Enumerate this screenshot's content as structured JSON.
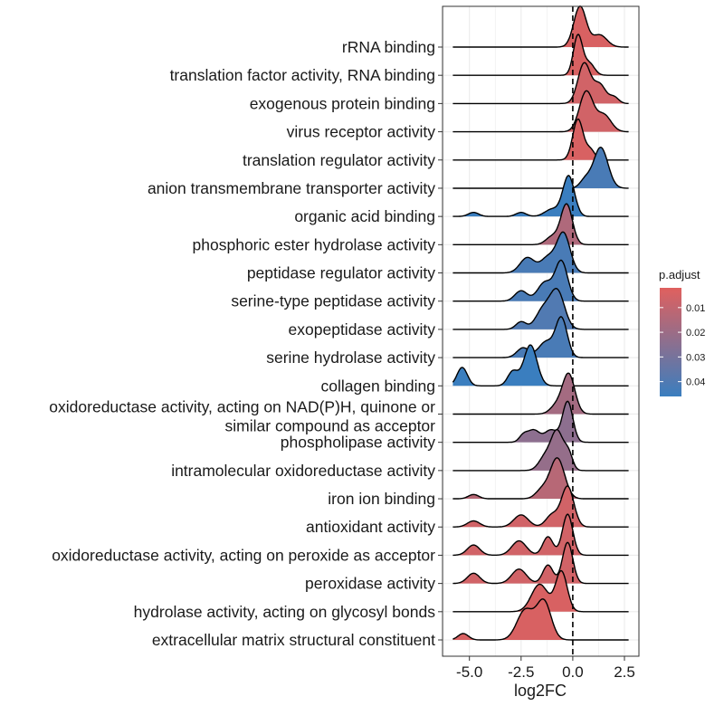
{
  "chart_data": {
    "type": "ridgeline",
    "xlabel": "log2FC",
    "xlim": [
      -6.3,
      3.2
    ],
    "x_ticks": [
      -5.0,
      -2.5,
      0.0,
      2.5
    ],
    "x_tick_labels": [
      "-5.0",
      "-2.5",
      "0.0",
      "2.5"
    ],
    "reference_line_x": 0,
    "grid": true,
    "legend": {
      "title": "p.adjust",
      "position": "right",
      "range": [
        0.002,
        0.046
      ],
      "ticks": [
        0.01,
        0.02,
        0.03,
        0.04
      ],
      "tick_labels": [
        "0.01",
        "0.02",
        "0.03",
        "0.04"
      ],
      "color_low": "#e0605e",
      "color_high": "#3a7ebf"
    },
    "categories": [
      {
        "label": "rRNA binding",
        "p_adjust": 0.004,
        "peaks": [
          [
            0.35,
            0.3,
            1.0
          ],
          [
            1.3,
            0.35,
            0.3
          ]
        ]
      },
      {
        "label": "translation factor activity, RNA binding",
        "p_adjust": 0.004,
        "peaks": [
          [
            0.25,
            0.22,
            1.0
          ],
          [
            0.8,
            0.25,
            0.3
          ]
        ]
      },
      {
        "label": "exogenous protein binding",
        "p_adjust": 0.006,
        "peaks": [
          [
            0.55,
            0.3,
            0.95
          ],
          [
            1.3,
            0.3,
            0.45
          ],
          [
            2.0,
            0.22,
            0.15
          ]
        ]
      },
      {
        "label": "virus receptor activity",
        "p_adjust": 0.006,
        "peaks": [
          [
            0.65,
            0.33,
            0.95
          ],
          [
            1.5,
            0.35,
            0.4
          ]
        ]
      },
      {
        "label": "translation regulator activity",
        "p_adjust": 0.004,
        "peaks": [
          [
            0.25,
            0.25,
            1.0
          ],
          [
            0.85,
            0.22,
            0.25
          ]
        ]
      },
      {
        "label": "anion transmembrane transporter activity",
        "p_adjust": 0.042,
        "peaks": [
          [
            1.35,
            0.35,
            1.0
          ],
          [
            0.6,
            0.25,
            0.2
          ]
        ]
      },
      {
        "label": "organic acid binding",
        "p_adjust": 0.046,
        "peaks": [
          [
            -0.2,
            0.28,
            1.0
          ],
          [
            -1.0,
            0.35,
            0.18
          ],
          [
            -2.5,
            0.25,
            0.1
          ],
          [
            -4.8,
            0.25,
            0.1
          ]
        ]
      },
      {
        "label": "phosphoric ester hydrolase activity",
        "p_adjust": 0.015,
        "peaks": [
          [
            -0.3,
            0.28,
            1.0
          ],
          [
            -1.0,
            0.3,
            0.2
          ]
        ]
      },
      {
        "label": "peptidase regulator activity",
        "p_adjust": 0.042,
        "peaks": [
          [
            -0.45,
            0.32,
            0.9
          ],
          [
            -1.2,
            0.35,
            0.35
          ],
          [
            -2.2,
            0.35,
            0.35
          ]
        ]
      },
      {
        "label": "serine-type peptidase activity",
        "p_adjust": 0.042,
        "peaks": [
          [
            -0.55,
            0.3,
            0.95
          ],
          [
            -1.35,
            0.35,
            0.45
          ],
          [
            -2.5,
            0.3,
            0.25
          ]
        ]
      },
      {
        "label": "exopeptidase activity",
        "p_adjust": 0.04,
        "peaks": [
          [
            -0.75,
            0.35,
            1.0
          ],
          [
            -1.45,
            0.35,
            0.5
          ],
          [
            -2.5,
            0.25,
            0.2
          ]
        ]
      },
      {
        "label": "serine hydrolase activity",
        "p_adjust": 0.042,
        "peaks": [
          [
            -0.55,
            0.28,
            1.0
          ],
          [
            -1.3,
            0.35,
            0.4
          ],
          [
            -2.4,
            0.3,
            0.25
          ]
        ]
      },
      {
        "label": "collagen binding",
        "p_adjust": 0.046,
        "peaks": [
          [
            -2.05,
            0.32,
            1.0
          ],
          [
            -2.9,
            0.25,
            0.35
          ],
          [
            -5.35,
            0.25,
            0.45
          ]
        ]
      },
      {
        "label": "oxidoreductase activity, acting on NAD(P)H, quinone or similar compound as acceptor",
        "p_adjust": 0.018,
        "peaks": [
          [
            -0.2,
            0.3,
            1.0
          ],
          [
            -0.8,
            0.3,
            0.2
          ]
        ]
      },
      {
        "label": "phospholipase activity",
        "p_adjust": 0.024,
        "peaks": [
          [
            -0.25,
            0.25,
            1.0
          ],
          [
            -1.05,
            0.3,
            0.3
          ],
          [
            -1.9,
            0.3,
            0.3
          ],
          [
            -2.4,
            0.2,
            0.15
          ]
        ]
      },
      {
        "label": "intramolecular oxidoreductase activity",
        "p_adjust": 0.022,
        "peaks": [
          [
            -0.75,
            0.3,
            0.9
          ],
          [
            -1.35,
            0.3,
            0.3
          ],
          [
            -0.2,
            0.2,
            0.35
          ]
        ]
      },
      {
        "label": "iron ion binding",
        "p_adjust": 0.013,
        "peaks": [
          [
            -0.75,
            0.35,
            0.95
          ],
          [
            -1.5,
            0.3,
            0.2
          ],
          [
            -4.8,
            0.25,
            0.1
          ]
        ]
      },
      {
        "label": "antioxidant activity",
        "p_adjust": 0.006,
        "peaks": [
          [
            -0.25,
            0.3,
            1.0
          ],
          [
            -1.0,
            0.3,
            0.3
          ],
          [
            -2.5,
            0.35,
            0.3
          ],
          [
            -4.8,
            0.3,
            0.15
          ]
        ]
      },
      {
        "label": "oxidoreductase activity, acting on peroxide as acceptor",
        "p_adjust": 0.006,
        "peaks": [
          [
            -0.25,
            0.25,
            1.0
          ],
          [
            -1.2,
            0.25,
            0.45
          ],
          [
            -2.6,
            0.35,
            0.35
          ],
          [
            -4.8,
            0.3,
            0.25
          ]
        ]
      },
      {
        "label": "peroxidase activity",
        "p_adjust": 0.006,
        "peaks": [
          [
            -0.25,
            0.25,
            1.0
          ],
          [
            -1.2,
            0.25,
            0.45
          ],
          [
            -2.6,
            0.35,
            0.35
          ],
          [
            -4.8,
            0.3,
            0.25
          ]
        ]
      },
      {
        "label": "hydrolase activity, acting on glycosyl bonds",
        "p_adjust": 0.004,
        "peaks": [
          [
            -0.55,
            0.28,
            0.95
          ],
          [
            -1.6,
            0.4,
            0.65
          ]
        ]
      },
      {
        "label": "extracellular matrix structural constituent",
        "p_adjust": 0.004,
        "peaks": [
          [
            -1.4,
            0.35,
            0.9
          ],
          [
            -2.3,
            0.4,
            0.7
          ],
          [
            -5.3,
            0.25,
            0.15
          ]
        ]
      }
    ]
  }
}
